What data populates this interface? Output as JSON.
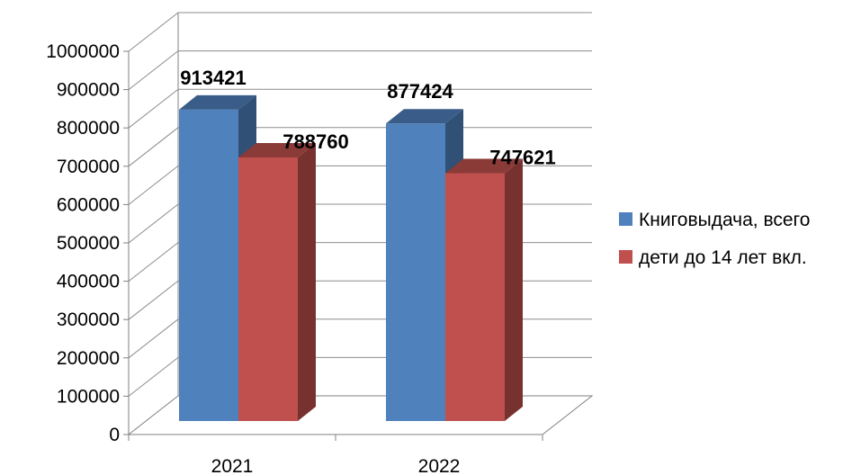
{
  "chart_data": {
    "type": "bar",
    "categories": [
      "2021",
      "2022"
    ],
    "series": [
      {
        "name": "Книговыдача, всего",
        "values": [
          913421,
          877424
        ],
        "color": "#4F81BD"
      },
      {
        "name": "дети до 14 лет вкл.",
        "values": [
          788760,
          747621
        ],
        "color": "#C0504D"
      }
    ],
    "ylim": [
      0,
      1000000
    ],
    "yticks": [
      "0",
      "100000",
      "200000",
      "300000",
      "400000",
      "500000",
      "600000",
      "700000",
      "800000",
      "900000",
      "1000000"
    ],
    "data_labels": [
      "913421",
      "788760",
      "877424",
      "747621"
    ],
    "grid": true,
    "legend_position": "right",
    "style": "3d"
  }
}
